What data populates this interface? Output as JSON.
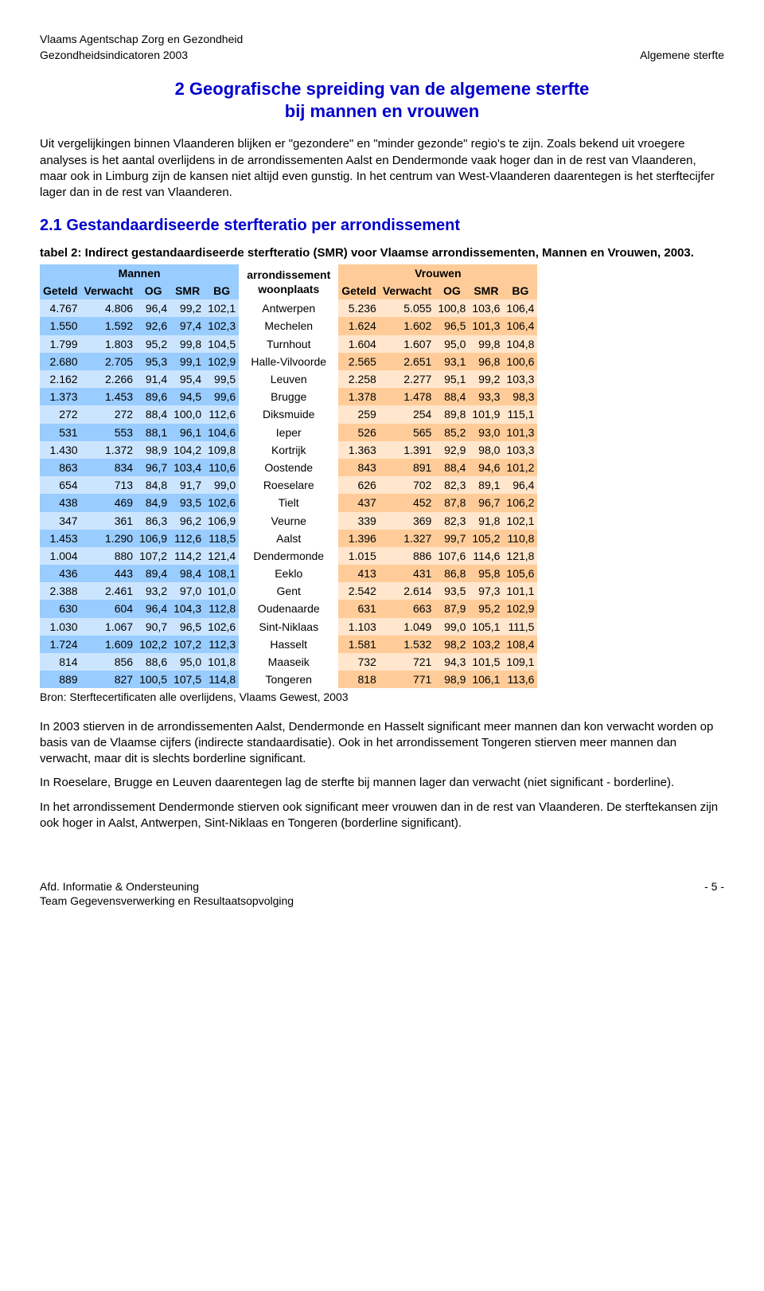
{
  "header": {
    "org": "Vlaams Agentschap Zorg en Gezondheid",
    "subtitle_left": "Gezondheidsindicatoren 2003",
    "subtitle_right": "Algemene sterfte"
  },
  "section": {
    "title_line1": "2  Geografische spreiding van de algemene sterfte",
    "title_line2": "bij mannen en vrouwen"
  },
  "para1": "Uit vergelijkingen binnen Vlaanderen blijken er \"gezondere\" en \"minder gezonde\" regio's te zijn. Zoals bekend uit vroegere analyses is het aantal overlijdens in de arrondissementen Aalst en Dendermonde vaak hoger dan in de rest van Vlaanderen, maar ook in Limburg zijn de kansen niet altijd even gunstig. In het centrum van West-Vlaanderen daarentegen is het sterftecijfer lager dan in de rest van Vlaanderen.",
  "subsection": {
    "title": "2.1 Gestandaardiseerde sterfteratio per arrondissement"
  },
  "table": {
    "caption": "tabel 2: Indirect gestandaardiseerde sterfteratio (SMR) voor Vlaamse arrondissementen, Mannen en Vrouwen, 2003.",
    "group_men": "Mannen",
    "group_arr_line1": "arrondissement",
    "group_arr_line2": "woonplaats",
    "group_women": "Vrouwen",
    "cols_men": [
      "Geteld",
      "Verwacht",
      "OG",
      "SMR",
      "BG"
    ],
    "cols_women": [
      "Geteld",
      "Verwacht",
      "OG",
      "SMR",
      "BG"
    ],
    "colors": {
      "blue_dark": "#99ccff",
      "blue_light": "#cce5ff",
      "orange_dark": "#ffcc99",
      "orange_light": "#ffe6cc"
    },
    "rows": [
      {
        "m": [
          "4.767",
          "4.806",
          "96,4",
          "99,2",
          "102,1"
        ],
        "a": "Antwerpen",
        "w": [
          "5.236",
          "5.055",
          "100,8",
          "103,6",
          "106,4"
        ]
      },
      {
        "m": [
          "1.550",
          "1.592",
          "92,6",
          "97,4",
          "102,3"
        ],
        "a": "Mechelen",
        "w": [
          "1.624",
          "1.602",
          "96,5",
          "101,3",
          "106,4"
        ]
      },
      {
        "m": [
          "1.799",
          "1.803",
          "95,2",
          "99,8",
          "104,5"
        ],
        "a": "Turnhout",
        "w": [
          "1.604",
          "1.607",
          "95,0",
          "99,8",
          "104,8"
        ]
      },
      {
        "m": [
          "2.680",
          "2.705",
          "95,3",
          "99,1",
          "102,9"
        ],
        "a": "Halle-Vilvoorde",
        "w": [
          "2.565",
          "2.651",
          "93,1",
          "96,8",
          "100,6"
        ]
      },
      {
        "m": [
          "2.162",
          "2.266",
          "91,4",
          "95,4",
          "99,5"
        ],
        "a": "Leuven",
        "w": [
          "2.258",
          "2.277",
          "95,1",
          "99,2",
          "103,3"
        ]
      },
      {
        "m": [
          "1.373",
          "1.453",
          "89,6",
          "94,5",
          "99,6"
        ],
        "a": "Brugge",
        "w": [
          "1.378",
          "1.478",
          "88,4",
          "93,3",
          "98,3"
        ]
      },
      {
        "m": [
          "272",
          "272",
          "88,4",
          "100,0",
          "112,6"
        ],
        "a": "Diksmuide",
        "w": [
          "259",
          "254",
          "89,8",
          "101,9",
          "115,1"
        ]
      },
      {
        "m": [
          "531",
          "553",
          "88,1",
          "96,1",
          "104,6"
        ],
        "a": "Ieper",
        "w": [
          "526",
          "565",
          "85,2",
          "93,0",
          "101,3"
        ]
      },
      {
        "m": [
          "1.430",
          "1.372",
          "98,9",
          "104,2",
          "109,8"
        ],
        "a": "Kortrijk",
        "w": [
          "1.363",
          "1.391",
          "92,9",
          "98,0",
          "103,3"
        ]
      },
      {
        "m": [
          "863",
          "834",
          "96,7",
          "103,4",
          "110,6"
        ],
        "a": "Oostende",
        "w": [
          "843",
          "891",
          "88,4",
          "94,6",
          "101,2"
        ]
      },
      {
        "m": [
          "654",
          "713",
          "84,8",
          "91,7",
          "99,0"
        ],
        "a": "Roeselare",
        "w": [
          "626",
          "702",
          "82,3",
          "89,1",
          "96,4"
        ]
      },
      {
        "m": [
          "438",
          "469",
          "84,9",
          "93,5",
          "102,6"
        ],
        "a": "Tielt",
        "w": [
          "437",
          "452",
          "87,8",
          "96,7",
          "106,2"
        ]
      },
      {
        "m": [
          "347",
          "361",
          "86,3",
          "96,2",
          "106,9"
        ],
        "a": "Veurne",
        "w": [
          "339",
          "369",
          "82,3",
          "91,8",
          "102,1"
        ]
      },
      {
        "m": [
          "1.453",
          "1.290",
          "106,9",
          "112,6",
          "118,5"
        ],
        "a": "Aalst",
        "w": [
          "1.396",
          "1.327",
          "99,7",
          "105,2",
          "110,8"
        ]
      },
      {
        "m": [
          "1.004",
          "880",
          "107,2",
          "114,2",
          "121,4"
        ],
        "a": "Dendermonde",
        "w": [
          "1.015",
          "886",
          "107,6",
          "114,6",
          "121,8"
        ]
      },
      {
        "m": [
          "436",
          "443",
          "89,4",
          "98,4",
          "108,1"
        ],
        "a": "Eeklo",
        "w": [
          "413",
          "431",
          "86,8",
          "95,8",
          "105,6"
        ]
      },
      {
        "m": [
          "2.388",
          "2.461",
          "93,2",
          "97,0",
          "101,0"
        ],
        "a": "Gent",
        "w": [
          "2.542",
          "2.614",
          "93,5",
          "97,3",
          "101,1"
        ]
      },
      {
        "m": [
          "630",
          "604",
          "96,4",
          "104,3",
          "112,8"
        ],
        "a": "Oudenaarde",
        "w": [
          "631",
          "663",
          "87,9",
          "95,2",
          "102,9"
        ]
      },
      {
        "m": [
          "1.030",
          "1.067",
          "90,7",
          "96,5",
          "102,6"
        ],
        "a": "Sint-Niklaas",
        "w": [
          "1.103",
          "1.049",
          "99,0",
          "105,1",
          "111,5"
        ]
      },
      {
        "m": [
          "1.724",
          "1.609",
          "102,2",
          "107,2",
          "112,3"
        ],
        "a": "Hasselt",
        "w": [
          "1.581",
          "1.532",
          "98,2",
          "103,2",
          "108,4"
        ]
      },
      {
        "m": [
          "814",
          "856",
          "88,6",
          "95,0",
          "101,8"
        ],
        "a": "Maaseik",
        "w": [
          "732",
          "721",
          "94,3",
          "101,5",
          "109,1"
        ]
      },
      {
        "m": [
          "889",
          "827",
          "100,5",
          "107,5",
          "114,8"
        ],
        "a": "Tongeren",
        "w": [
          "818",
          "771",
          "98,9",
          "106,1",
          "113,6"
        ]
      }
    ],
    "source": "Bron: Sterftecertificaten alle overlijdens, Vlaams Gewest, 2003"
  },
  "para2": "In 2003 stierven in de arrondissementen Aalst, Dendermonde en Hasselt significant meer mannen dan kon verwacht worden op basis van de Vlaamse cijfers (indirecte standaardisatie). Ook in het arrondissement Tongeren stierven meer mannen dan verwacht, maar dit is slechts borderline significant.",
  "para3": "In Roeselare, Brugge en Leuven daarentegen lag de sterfte bij mannen lager dan verwacht (niet significant - borderline).",
  "para4": "In het arrondissement Dendermonde stierven ook significant meer vrouwen dan in de rest van Vlaanderen. De sterftekansen zijn ook hoger in Aalst, Antwerpen, Sint-Niklaas en Tongeren (borderline significant).",
  "footer": {
    "left_line1": "Afd. Informatie & Ondersteuning",
    "left_line2": "Team Gegevensverwerking en Resultaatsopvolging",
    "right": "- 5 -"
  }
}
